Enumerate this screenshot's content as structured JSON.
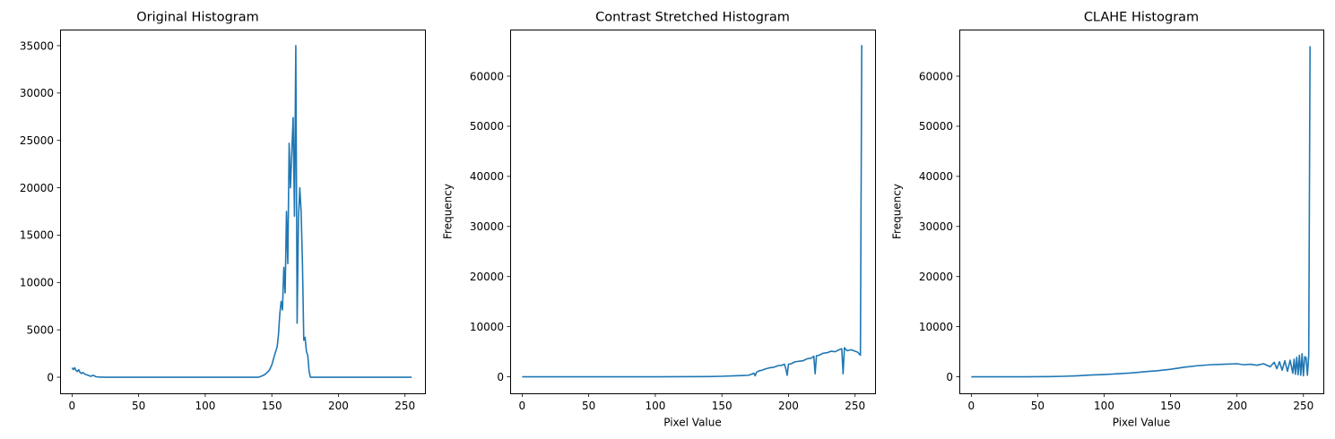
{
  "colors": {
    "series": "#1f77b4",
    "axes": "#000000",
    "background": "#ffffff"
  },
  "chart_data": [
    {
      "type": "line",
      "title": "Original Histogram",
      "xlabel": "",
      "ylabel": "",
      "xlim": [
        -9,
        265
      ],
      "ylim": [
        -1700,
        36700
      ],
      "grid": false,
      "xticks": [
        0,
        50,
        100,
        150,
        200,
        250
      ],
      "yticks": [
        0,
        5000,
        10000,
        15000,
        20000,
        25000,
        30000,
        35000
      ],
      "series": [
        {
          "x": [
            0,
            1,
            2,
            3,
            4,
            5,
            6,
            7,
            8,
            10,
            12,
            14,
            16,
            18,
            20,
            25,
            30,
            50,
            100,
            130,
            140,
            142,
            145,
            148,
            150,
            152,
            154,
            155,
            156,
            157,
            158,
            159,
            160,
            161,
            162,
            163,
            164,
            165,
            166,
            167,
            168,
            169,
            170,
            171,
            172,
            173,
            174,
            175,
            176,
            177,
            178,
            179,
            180,
            181,
            182,
            200,
            255
          ],
          "y": [
            1000,
            800,
            1000,
            700,
            600,
            800,
            500,
            400,
            500,
            300,
            200,
            100,
            200,
            50,
            20,
            0,
            0,
            0,
            0,
            0,
            0,
            100,
            300,
            700,
            1300,
            2300,
            3200,
            4500,
            6700,
            8000,
            7100,
            11600,
            8900,
            17500,
            12000,
            24700,
            20000,
            23800,
            27400,
            17000,
            35000,
            5700,
            16700,
            20000,
            17500,
            12000,
            3900,
            4200,
            2700,
            2300,
            600,
            0,
            0,
            0,
            0,
            0,
            0
          ]
        }
      ]
    },
    {
      "type": "line",
      "title": "Contrast Stretched Histogram",
      "xlabel": "Pixel Value",
      "ylabel": "Frequency",
      "xlim": [
        -9,
        265
      ],
      "ylim": [
        -3300,
        69300
      ],
      "grid": false,
      "xticks": [
        0,
        50,
        100,
        150,
        200,
        250
      ],
      "yticks": [
        0,
        10000,
        20000,
        30000,
        40000,
        50000,
        60000
      ],
      "series": [
        {
          "x": [
            0,
            50,
            100,
            140,
            150,
            160,
            165,
            170,
            174,
            175,
            176,
            178,
            180,
            183,
            186,
            189,
            192,
            195,
            197,
            198,
            199,
            200,
            202,
            205,
            208,
            211,
            214,
            217,
            219,
            220,
            221,
            223,
            226,
            229,
            232,
            235,
            238,
            240,
            241,
            242,
            244,
            247,
            250,
            252,
            253,
            254,
            255
          ],
          "y": [
            0,
            0,
            0,
            50,
            100,
            200,
            250,
            300,
            700,
            200,
            900,
            1200,
            1300,
            1600,
            1800,
            1900,
            2200,
            2300,
            2500,
            1600,
            300,
            2500,
            2600,
            3000,
            3100,
            3200,
            3600,
            3700,
            4100,
            600,
            4200,
            4300,
            4700,
            4800,
            5100,
            5000,
            5400,
            5600,
            600,
            5800,
            5200,
            5400,
            5100,
            4900,
            4600,
            4300,
            66200
          ]
        }
      ]
    },
    {
      "type": "line",
      "title": "CLAHE Histogram",
      "xlabel": "Pixel Value",
      "ylabel": "Frequency",
      "xlim": [
        -9,
        265
      ],
      "ylim": [
        -3300,
        69300
      ],
      "grid": false,
      "xticks": [
        0,
        50,
        100,
        150,
        200,
        250
      ],
      "yticks": [
        0,
        10000,
        20000,
        30000,
        40000,
        50000,
        60000
      ],
      "series": [
        {
          "x": [
            0,
            40,
            60,
            70,
            80,
            90,
            100,
            110,
            120,
            130,
            140,
            150,
            160,
            170,
            180,
            190,
            200,
            205,
            210,
            215,
            220,
            225,
            228,
            230,
            232,
            234,
            236,
            238,
            240,
            242,
            243,
            244,
            245,
            246,
            247,
            248,
            249,
            250,
            251,
            252,
            253,
            254,
            255
          ],
          "y": [
            0,
            0,
            50,
            100,
            200,
            350,
            450,
            600,
            750,
            1000,
            1200,
            1500,
            1900,
            2200,
            2400,
            2500,
            2600,
            2400,
            2500,
            2300,
            2600,
            2000,
            2900,
            1600,
            3000,
            1300,
            3200,
            1100,
            3300,
            700,
            3500,
            500,
            3900,
            400,
            4300,
            300,
            4600,
            200,
            4000,
            3800,
            300,
            4200,
            66000
          ]
        }
      ]
    }
  ]
}
